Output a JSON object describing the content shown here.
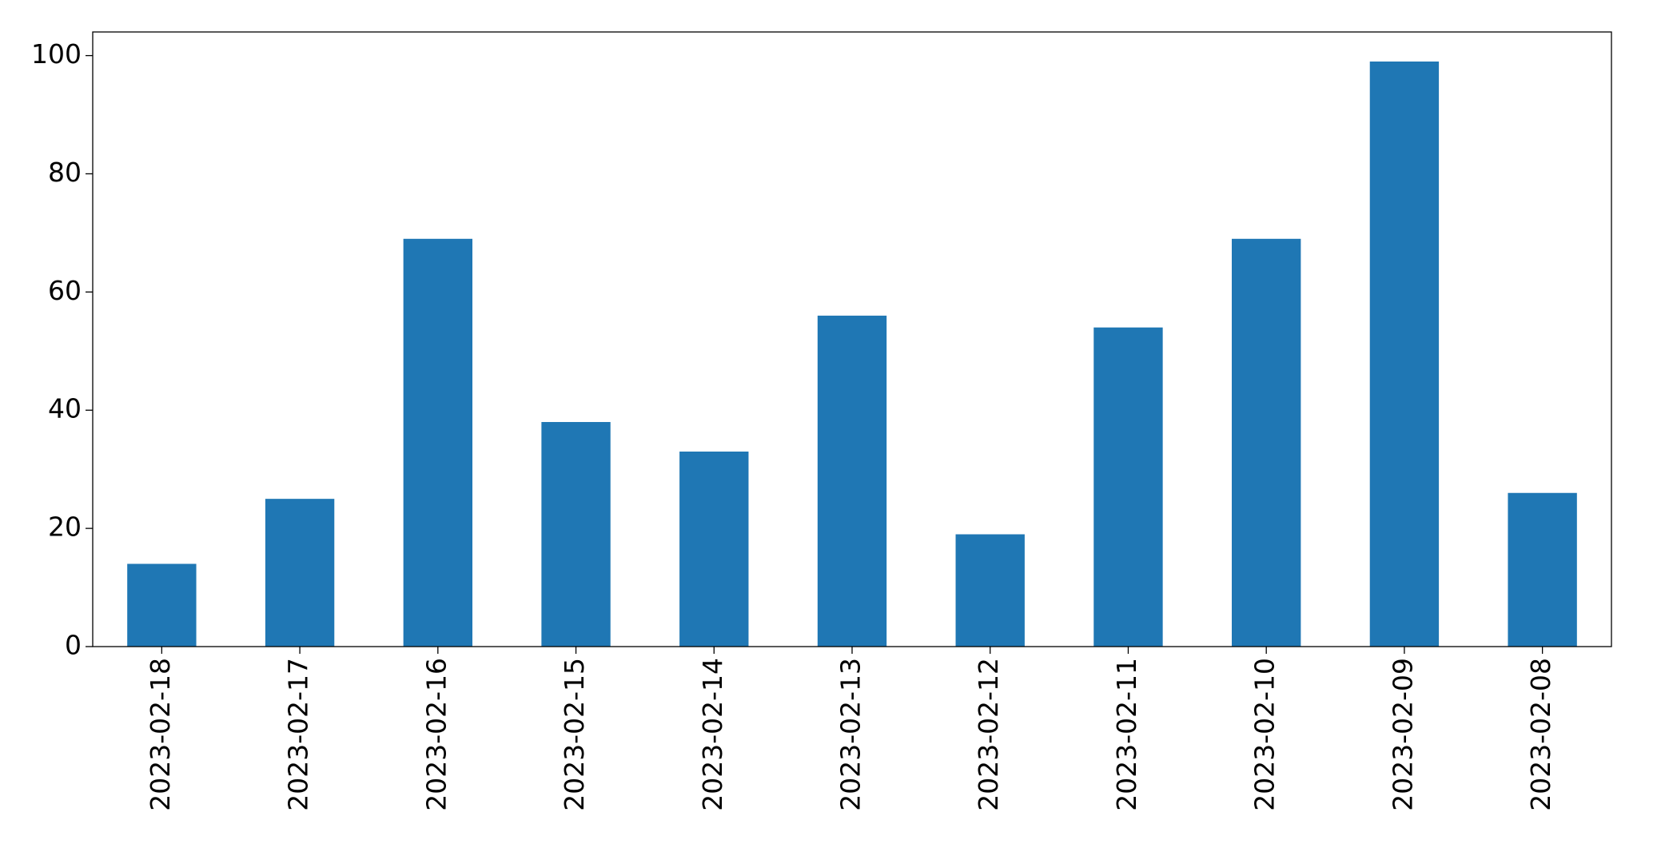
{
  "chart_data": {
    "type": "bar",
    "categories": [
      "2023-02-18",
      "2023-02-17",
      "2023-02-16",
      "2023-02-15",
      "2023-02-14",
      "2023-02-13",
      "2023-02-12",
      "2023-02-11",
      "2023-02-10",
      "2023-02-09",
      "2023-02-08"
    ],
    "values": [
      14,
      25,
      69,
      38,
      33,
      56,
      19,
      54,
      69,
      99,
      26
    ],
    "color": "#1f77b4",
    "ylim": [
      0,
      104
    ],
    "yticks": [
      0,
      20,
      40,
      60,
      80,
      100
    ],
    "grid": false
  }
}
